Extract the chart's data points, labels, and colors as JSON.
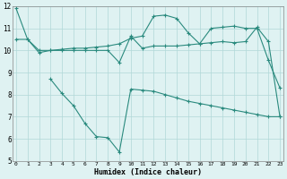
{
  "line1_x": [
    0,
    1,
    2,
    3,
    4,
    5,
    6,
    7,
    8,
    9,
    10,
    11,
    12,
    13,
    14,
    15,
    16,
    17,
    18,
    19,
    20,
    21,
    22,
    23
  ],
  "line1_y": [
    11.9,
    10.5,
    10.0,
    10.0,
    10.05,
    10.1,
    10.1,
    10.15,
    10.2,
    10.3,
    10.55,
    10.65,
    11.55,
    11.6,
    11.45,
    10.8,
    10.3,
    11.0,
    11.05,
    11.1,
    11.0,
    11.0,
    9.55,
    8.3
  ],
  "line2_x": [
    0,
    1,
    2,
    3,
    4,
    5,
    6,
    7,
    8,
    9,
    10,
    11,
    12,
    13,
    14,
    15,
    16,
    17,
    18,
    19,
    20,
    21,
    22,
    23
  ],
  "line2_y": [
    10.5,
    10.5,
    9.9,
    10.0,
    10.0,
    10.0,
    10.0,
    10.0,
    10.0,
    9.45,
    10.65,
    10.1,
    10.2,
    10.2,
    10.2,
    10.25,
    10.3,
    10.35,
    10.4,
    10.35,
    10.4,
    11.05,
    10.4,
    7.0
  ],
  "line3_x": [
    3,
    4,
    5,
    6,
    7,
    8,
    9,
    10,
    11,
    12,
    13,
    14,
    15,
    16,
    17,
    18,
    19,
    20,
    21,
    22,
    23
  ],
  "line3_y": [
    8.7,
    8.05,
    7.5,
    6.7,
    6.1,
    6.05,
    5.4,
    8.25,
    8.2,
    8.15,
    8.0,
    7.85,
    7.7,
    7.6,
    7.5,
    7.4,
    7.3,
    7.2,
    7.1,
    7.0,
    7.0
  ],
  "line_color": "#2a8a7e",
  "bg_color": "#dff2f2",
  "grid_color": "#b0d8d8",
  "xlabel": "Humidex (Indice chaleur)",
  "xlim": [
    0,
    23
  ],
  "ylim": [
    5,
    12
  ],
  "xticks": [
    0,
    1,
    2,
    3,
    4,
    5,
    6,
    7,
    8,
    9,
    10,
    11,
    12,
    13,
    14,
    15,
    16,
    17,
    18,
    19,
    20,
    21,
    22,
    23
  ],
  "yticks": [
    5,
    6,
    7,
    8,
    9,
    10,
    11,
    12
  ]
}
